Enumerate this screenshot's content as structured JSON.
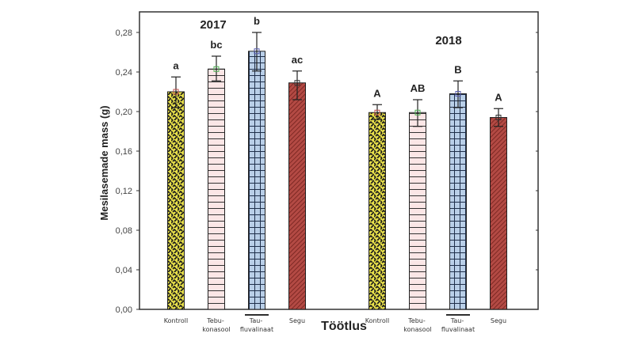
{
  "chart_data": {
    "type": "bar",
    "title": "",
    "xlabel": "Töötlus",
    "ylabel": "Mesilasemade mass (g)",
    "ylim": [
      0,
      0.3
    ],
    "yticks": [
      0.0,
      0.04,
      0.08,
      0.12,
      0.16,
      0.2,
      0.24,
      0.28
    ],
    "ytick_labels": [
      "0,00",
      "0,04",
      "0,08",
      "0,12",
      "0,16",
      "0,20",
      "0,24",
      "0,28"
    ],
    "grid": false,
    "groups": [
      {
        "year": "2017",
        "bars": [
          {
            "category": [
              "Kontroll"
            ],
            "value": 0.22,
            "err_low": 0.204,
            "err_high": 0.235,
            "sig": "a",
            "pattern": "kontroll"
          },
          {
            "category": [
              "Tebu-",
              "konasool"
            ],
            "value": 0.243,
            "err_low": 0.231,
            "err_high": 0.256,
            "sig": "bc",
            "pattern": "tebu"
          },
          {
            "category": [
              "Tau-",
              "fluvalinaat"
            ],
            "value": 0.261,
            "err_low": 0.241,
            "err_high": 0.28,
            "sig": "b",
            "pattern": "tau"
          },
          {
            "category": [
              "Segu"
            ],
            "value": 0.229,
            "err_low": 0.212,
            "err_high": 0.241,
            "sig": "ac",
            "pattern": "segu"
          }
        ]
      },
      {
        "year": "2018",
        "bars": [
          {
            "category": [
              "Kontroll"
            ],
            "value": 0.199,
            "err_low": 0.192,
            "err_high": 0.207,
            "sig": "A",
            "pattern": "kontroll"
          },
          {
            "category": [
              "Tebu-",
              "konasool"
            ],
            "value": 0.199,
            "err_low": 0.185,
            "err_high": 0.212,
            "sig": "AB",
            "pattern": "tebu"
          },
          {
            "category": [
              "Tau-",
              "fluvalinaat"
            ],
            "value": 0.218,
            "err_low": 0.204,
            "err_high": 0.231,
            "sig": "B",
            "pattern": "tau"
          },
          {
            "category": [
              "Segu"
            ],
            "value": 0.194,
            "err_low": 0.185,
            "err_high": 0.203,
            "sig": "A",
            "pattern": "segu"
          }
        ]
      }
    ],
    "colors": {
      "kontroll_fill": "#e8e04a",
      "kontroll_pattern": "#1a1a1a",
      "tebu_fill": "#fbe6e6",
      "tebu_line": "#333333",
      "tau_fill": "#b9cfe8",
      "tau_line": "#1f2f4a",
      "segu_fill": "#b34a44",
      "segu_line": "#6e1e1a",
      "axis": "#333333"
    }
  }
}
